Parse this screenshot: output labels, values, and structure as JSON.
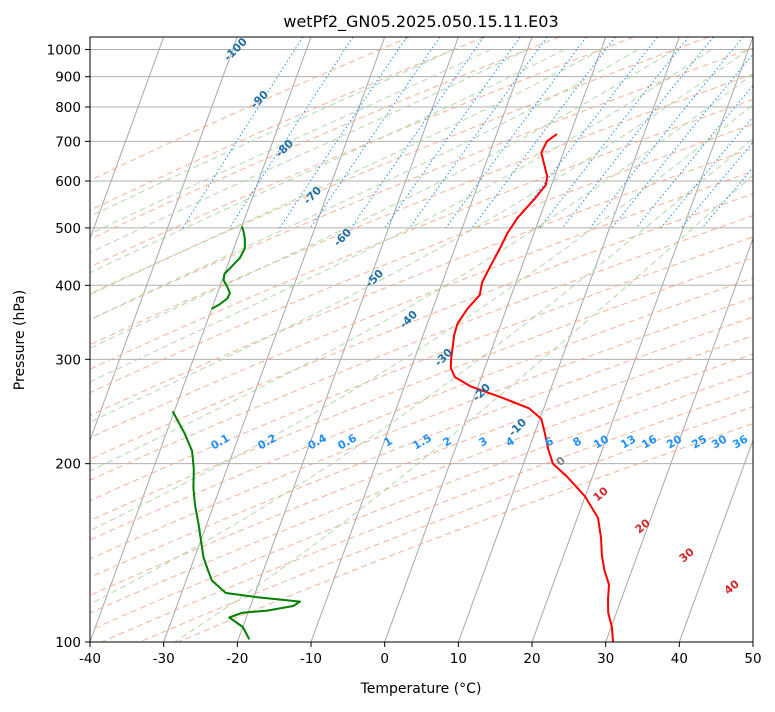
{
  "chart_data": {
    "type": "line",
    "title": "wetPf2_GN05.2025.050.15.11.E03",
    "xlabel": "Temperature (°C)",
    "ylabel": "Pressure (hPa)",
    "xlim": [
      -40,
      50
    ],
    "ylim": [
      1050,
      100
    ],
    "y_scale": "log",
    "grid": true,
    "x_ticks": [
      -40,
      -30,
      -20,
      -10,
      0,
      10,
      20,
      30,
      40,
      50
    ],
    "y_ticks": [
      100,
      200,
      300,
      400,
      500,
      600,
      700,
      800,
      900,
      1000
    ],
    "skew": 30,
    "series": [
      {
        "color": "#ff0000",
        "style": "temperature",
        "points": [
          [
            -1.8,
            720
          ],
          [
            -2.8,
            700
          ],
          [
            -3.0,
            670
          ],
          [
            -2.2,
            645
          ],
          [
            -1.0,
            610
          ],
          [
            -0.8,
            590
          ],
          [
            -1.6,
            560
          ],
          [
            -3.0,
            520
          ],
          [
            -3.6,
            490
          ],
          [
            -3.9,
            460
          ],
          [
            -4.3,
            430
          ],
          [
            -4.6,
            405
          ],
          [
            -4.3,
            385
          ],
          [
            -5.3,
            365
          ],
          [
            -5.9,
            345
          ],
          [
            -5.8,
            330
          ],
          [
            -5.4,
            315
          ],
          [
            -5.0,
            300
          ],
          [
            -4.6,
            290
          ],
          [
            -3.6,
            280
          ],
          [
            -1.0,
            270
          ],
          [
            4.0,
            258
          ],
          [
            8.0,
            248
          ],
          [
            10.2,
            238
          ],
          [
            11.4,
            225
          ],
          [
            12.6,
            212
          ],
          [
            14.0,
            200
          ],
          [
            16.6,
            190
          ],
          [
            20.0,
            176
          ],
          [
            22.8,
            162
          ],
          [
            24.2,
            150
          ],
          [
            25.2,
            140
          ],
          [
            26.3,
            132
          ],
          [
            27.6,
            125
          ],
          [
            28.2,
            118
          ],
          [
            28.9,
            112
          ],
          [
            30.1,
            106
          ],
          [
            31.0,
            100
          ]
        ]
      },
      {
        "color": "#008000",
        "style": "dewpoint",
        "points": [
          [
            -40.2,
            245
          ],
          [
            -37.5,
            225
          ],
          [
            -35.6,
            210
          ],
          [
            -34.5,
            196
          ],
          [
            -33.6,
            182
          ],
          [
            -32.5,
            170
          ],
          [
            -31.1,
            158
          ],
          [
            -29.8,
            147
          ],
          [
            -28.8,
            139
          ],
          [
            -27.7,
            133
          ],
          [
            -26.5,
            127
          ],
          [
            -24.0,
            121
          ],
          [
            -19.5,
            119
          ],
          [
            -13.5,
            117
          ],
          [
            -14.2,
            115
          ],
          [
            -17.5,
            113
          ],
          [
            -20.8,
            112
          ],
          [
            -22.3,
            110
          ],
          [
            -20.0,
            106
          ],
          [
            -18.5,
            101
          ]
        ]
      },
      {
        "color": "#008000",
        "style": "dewpoint",
        "points": [
          [
            -40.0,
            365
          ],
          [
            -39.1,
            372
          ],
          [
            -38.4,
            380
          ],
          [
            -38.3,
            388
          ],
          [
            -39.0,
            398
          ],
          [
            -39.8,
            408
          ],
          [
            -40.0,
            418
          ],
          [
            -39.4,
            430
          ],
          [
            -38.7,
            445
          ],
          [
            -38.5,
            462
          ],
          [
            -39.0,
            480
          ],
          [
            -39.6,
            495
          ],
          [
            -40.0,
            503
          ]
        ]
      }
    ],
    "dry_adiabat_labels": [
      "-100",
      "-90",
      "-80",
      "-70",
      "-60",
      "-50",
      "-40",
      "-30",
      "-20",
      "-10"
    ],
    "mixing_ratio_labels": [
      "0.1",
      "0.2",
      "0.4",
      "0.6",
      "1",
      "1.5",
      "2",
      "3",
      "4",
      "6",
      "8",
      "10",
      "13",
      "16",
      "20",
      "25",
      "30",
      "36"
    ],
    "moist_adiabat_labels": [
      "0",
      "10",
      "20",
      "30",
      "40"
    ]
  },
  "colors": {
    "temperature": "#ff0000",
    "dewpoint": "#008000",
    "isotherm": "#808080",
    "dry_adiabat": "#f4a582",
    "moist_adiabat": "#a8d5a2",
    "mixing_ratio": "#1e90ff",
    "dry_label": "#1f6fa8",
    "mix_label": "#1e90ff",
    "moist_label": "#d62728",
    "zero_label": "#808080"
  }
}
